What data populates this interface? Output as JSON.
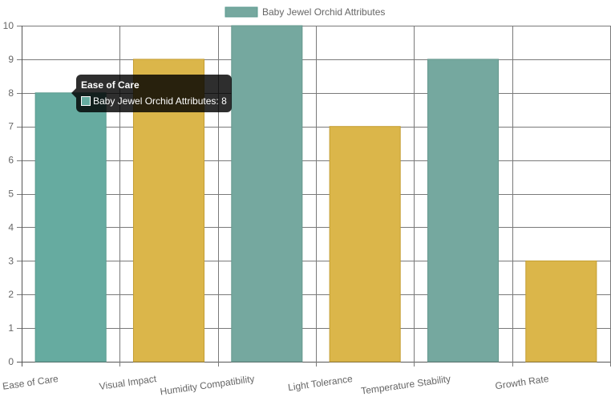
{
  "chart_data": {
    "type": "bar",
    "title": "",
    "xlabel": "",
    "ylabel": "",
    "ylim": [
      0,
      10
    ],
    "yticks": [
      0,
      1,
      2,
      3,
      4,
      5,
      6,
      7,
      8,
      9,
      10
    ],
    "categories": [
      "Ease of Care",
      "Visual Impact",
      "Humidity Compatibility",
      "Light Tolerance",
      "Temperature Stability",
      "Growth Rate"
    ],
    "series": [
      {
        "name": "Baby Jewel Orchid Attributes",
        "values": [
          8,
          9,
          10,
          7,
          9,
          3
        ],
        "bar_colors": [
          "#66aba0",
          "#dbb64a",
          "#75a89f",
          "#dbb64a",
          "#75a89f",
          "#dbb64a"
        ],
        "border_colors": [
          "#5a9a8f",
          "#c49e32",
          "#66978e",
          "#c49e32",
          "#66978e",
          "#c49e32"
        ]
      }
    ],
    "legend": {
      "position": "top",
      "label": "Baby Jewel Orchid Attributes",
      "color": "#75a89f",
      "border": "#5a9a8f"
    },
    "grid": true
  },
  "tooltip": {
    "title": "Ease of Care",
    "text": "Baby Jewel Orchid Attributes: 8",
    "swatch_color": "#66aba0"
  }
}
